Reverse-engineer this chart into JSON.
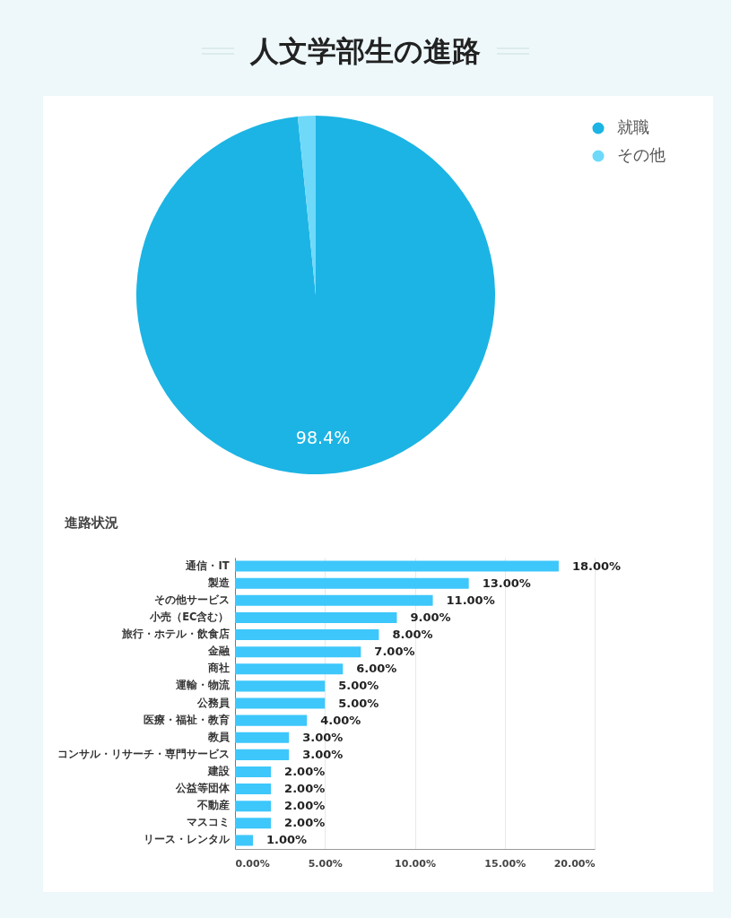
{
  "chart_data": [
    {
      "type": "pie",
      "title": "人文学部生の進路",
      "categories": [
        "就職",
        "その他"
      ],
      "values": [
        98.4,
        1.6
      ],
      "colors": [
        "#1cb4e4",
        "#6fd9fa"
      ],
      "value_labels": [
        "98.4%",
        null
      ],
      "legend": "top right"
    },
    {
      "type": "bar",
      "orientation": "horizontal",
      "title": "進路状況",
      "categories": [
        "通信・IT",
        "製造",
        "その他サービス",
        "小売（EC含む）",
        "旅行・ホテル・飲食店",
        "金融",
        "商社",
        "運輸・物流",
        "公務員",
        "医療・福祉・教育",
        "教員",
        "コンサル・リサーチ・専門サービス",
        "建設",
        "公益等団体",
        "不動産",
        "マスコミ",
        "リース・レンタル"
      ],
      "values": [
        18,
        13,
        11,
        9,
        8,
        7,
        6,
        5,
        5,
        4,
        3,
        3,
        2,
        2,
        2,
        2,
        1
      ],
      "color": "#3dc7fb",
      "value_labels": [
        "18.00%",
        "13.00%",
        "11.00%",
        "9.00%",
        "8.00%",
        "7.00%",
        "6.00%",
        "5.00%",
        "5.00%",
        "4.00%",
        "3.00%",
        "3.00%",
        "2.00%",
        "2.00%",
        "2.00%",
        "2.00%",
        "1.00%"
      ],
      "xlim": [
        0,
        20
      ],
      "xticks": [
        {
          "value": 0,
          "label": "0.00%"
        },
        {
          "value": 5,
          "label": "5.00%"
        },
        {
          "value": 10,
          "label": "10.00%"
        },
        {
          "value": 15,
          "label": "15.00%"
        },
        {
          "value": 20,
          "label": "20.00%"
        }
      ],
      "grid": "x"
    }
  ]
}
